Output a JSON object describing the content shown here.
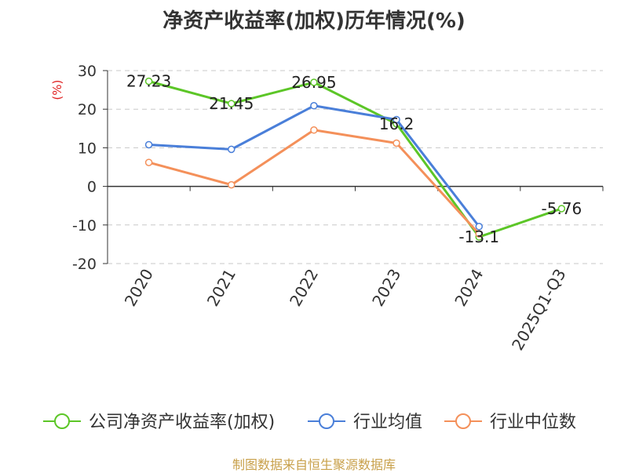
{
  "chart_data": {
    "type": "line",
    "title": "净资产收益率(加权)历年情况(%)",
    "ylabel": "(%)",
    "categories": [
      "2020",
      "2021",
      "2022",
      "2023",
      "2024",
      "2025Q1-Q3"
    ],
    "ylim": [
      -20,
      30
    ],
    "yticks": [
      30,
      20,
      10,
      0,
      -10,
      -20
    ],
    "grid": true,
    "legend_position": "bottom",
    "series": [
      {
        "name": "公司净资产收益率(加权)",
        "color": "#5cc627",
        "values": [
          27.23,
          21.45,
          26.95,
          16.2,
          -13.1,
          -5.76
        ],
        "labels": [
          "27.23",
          "21.45",
          "26.95",
          "16.2",
          "-13.1",
          "-5.76"
        ]
      },
      {
        "name": "行业均值",
        "color": "#4a7fd9",
        "values": [
          10.8,
          9.6,
          20.9,
          17.3,
          -10.4,
          null
        ]
      },
      {
        "name": "行业中位数",
        "color": "#f4905a",
        "values": [
          6.2,
          0.4,
          14.6,
          11.2,
          -12.3,
          null
        ]
      }
    ],
    "source_note": "制图数据来自恒生聚源数据库"
  }
}
